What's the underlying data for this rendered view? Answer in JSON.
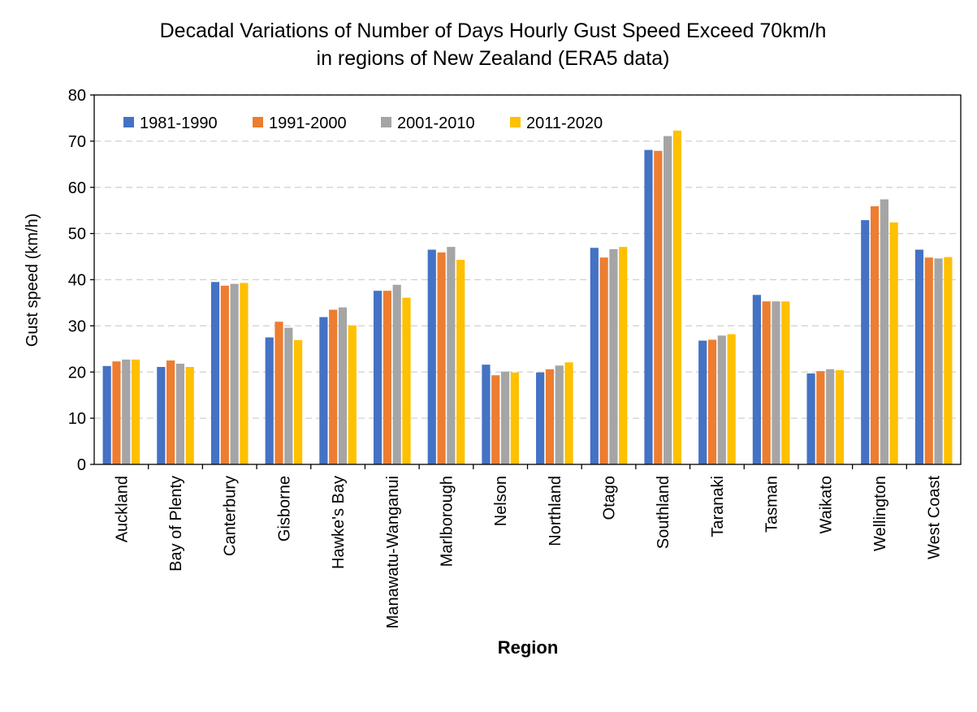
{
  "chart_data": {
    "type": "bar",
    "title_lines": [
      "Decadal Variations of Number of Days Hourly Gust Speed Exceed 70km/h",
      "in regions of New Zealand (ERA5 data)"
    ],
    "xlabel": "Region",
    "ylabel": "Gust speed (km/h)",
    "ylim": [
      0,
      80
    ],
    "yticks": [
      0,
      10,
      20,
      30,
      40,
      50,
      60,
      70,
      80
    ],
    "grid": "horizontal dashed",
    "legend_position": "top-left",
    "categories": [
      "Auckland",
      "Bay of Plenty",
      "Canterbury",
      "Gisborne",
      "Hawke's Bay",
      "Manawatu-Wanganui",
      "Marlborough",
      "Nelson",
      "Northland",
      "Otago",
      "Southland",
      "Taranaki",
      "Tasman",
      "Waikato",
      "Wellington",
      "West Coast"
    ],
    "series": [
      {
        "name": "1981-1990",
        "color": "#4472C4",
        "values": [
          21.3,
          21.1,
          39.5,
          27.5,
          31.9,
          37.6,
          46.5,
          21.6,
          19.9,
          46.9,
          68.1,
          26.8,
          36.7,
          19.7,
          52.9,
          46.5
        ]
      },
      {
        "name": "1991-2000",
        "color": "#ED7D31",
        "values": [
          22.3,
          22.5,
          38.7,
          30.9,
          33.5,
          37.6,
          45.9,
          19.3,
          20.6,
          44.8,
          67.9,
          27.0,
          35.3,
          20.2,
          55.9,
          44.8
        ]
      },
      {
        "name": "2001-2010",
        "color": "#A5A5A5",
        "values": [
          22.7,
          21.8,
          39.1,
          29.6,
          34.0,
          38.9,
          47.1,
          20.1,
          21.4,
          46.6,
          71.1,
          27.9,
          35.3,
          20.6,
          57.4,
          44.6
        ]
      },
      {
        "name": "2011-2020",
        "color": "#FFC000",
        "values": [
          22.7,
          21.1,
          39.3,
          26.9,
          30.1,
          36.1,
          44.3,
          19.9,
          22.1,
          47.1,
          72.3,
          28.2,
          35.3,
          20.4,
          52.4,
          44.9
        ]
      }
    ]
  }
}
